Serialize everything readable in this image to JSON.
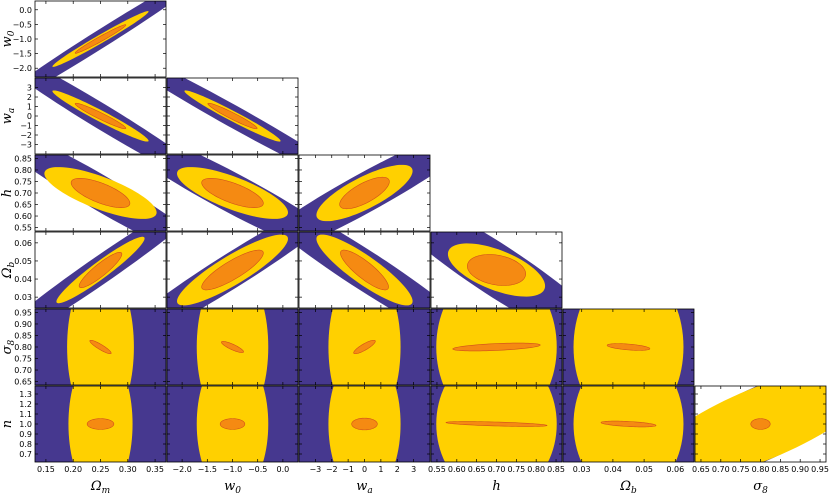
{
  "colors": {
    "outer": "#46388f",
    "middle": "#ffd000",
    "inner": "#f58a12",
    "inner_edge": "#d0501a"
  },
  "parameters": [
    {
      "id": "Om",
      "label_base": "Ω",
      "label_sub": "m",
      "fid": 0.25,
      "range": [
        0.13,
        0.37
      ],
      "ticks": [
        "0.15",
        "0.20",
        "0.25",
        "0.30",
        "0.35"
      ]
    },
    {
      "id": "w0",
      "label_base": "w",
      "label_sub": "0",
      "fid": -1.0,
      "range": [
        -2.3,
        0.3
      ],
      "ticks": [
        "−2.0",
        "−1.5",
        "−1.0",
        "−0.5",
        "0.0"
      ]
    },
    {
      "id": "wa",
      "label_base": "w",
      "label_sub": "a",
      "fid": 0.0,
      "range": [
        -4.0,
        4.0
      ],
      "ticks": [
        "−3",
        "−2",
        "−1",
        "0",
        "1",
        "2",
        "3"
      ]
    },
    {
      "id": "h",
      "label_base": "h",
      "label_sub": "",
      "fid": 0.7,
      "range": [
        0.535,
        0.865
      ],
      "ticks": [
        "0.55",
        "0.60",
        "0.65",
        "0.70",
        "0.75",
        "0.80",
        "0.85"
      ]
    },
    {
      "id": "Ob",
      "label_base": "Ω",
      "label_sub": "b",
      "fid": 0.045,
      "range": [
        0.024,
        0.066
      ],
      "ticks": [
        "0.03",
        "0.04",
        "0.05",
        "0.06"
      ]
    },
    {
      "id": "s8",
      "label_base": "σ",
      "label_sub": "8",
      "fid": 0.8,
      "range": [
        0.635,
        0.965
      ],
      "ticks": [
        "0.65",
        "0.70",
        "0.75",
        "0.80",
        "0.85",
        "0.90",
        "0.95"
      ]
    },
    {
      "id": "n",
      "label_base": "n",
      "label_sub": "",
      "fid": 1.0,
      "range": [
        0.62,
        1.38
      ],
      "ticks": [
        "0.7",
        "0.8",
        "0.9",
        "1.0",
        "1.1",
        "1.2",
        "1.3"
      ]
    }
  ],
  "chart_data": {
    "type": "scatter",
    "title": "",
    "xlabel": "",
    "ylabel": "",
    "kind": "corner plot of 2D confidence ellipses (three nested contours per panel)",
    "panels": [
      {
        "x": "Om",
        "y": "w0",
        "outer": {
          "sx": 0.088,
          "sy": 1.04,
          "rho": 0.99
        },
        "middle": {
          "sx": 0.036,
          "sy": 0.39,
          "rho": 0.985
        },
        "inner": {
          "sx": 0.019,
          "sy": 0.2,
          "rho": 0.98
        }
      },
      {
        "x": "Om",
        "y": "wa",
        "outer": {
          "sx": 0.088,
          "sy": 3.1,
          "rho": -0.98
        },
        "middle": {
          "sx": 0.036,
          "sy": 1.1,
          "rho": -0.97
        },
        "inner": {
          "sx": 0.019,
          "sy": 0.55,
          "rho": -0.96
        }
      },
      {
        "x": "w0",
        "y": "wa",
        "outer": {
          "sx": 1.04,
          "sy": 3.1,
          "rho": -0.985
        },
        "middle": {
          "sx": 0.39,
          "sy": 1.1,
          "rho": -0.975
        },
        "inner": {
          "sx": 0.2,
          "sy": 0.55,
          "rho": -0.96
        }
      },
      {
        "x": "Om",
        "y": "h",
        "outer": {
          "sx": 0.088,
          "sy": 0.125,
          "rho": -0.96
        },
        "middle": {
          "sx": 0.042,
          "sy": 0.046,
          "rho": -0.75
        },
        "inner": {
          "sx": 0.022,
          "sy": 0.026,
          "rho": -0.7
        }
      },
      {
        "x": "w0",
        "y": "h",
        "outer": {
          "sx": 1.04,
          "sy": 0.125,
          "rho": -0.95
        },
        "middle": {
          "sx": 0.45,
          "sy": 0.046,
          "rho": -0.75
        },
        "inner": {
          "sx": 0.25,
          "sy": 0.026,
          "rho": -0.7
        }
      },
      {
        "x": "wa",
        "y": "h",
        "outer": {
          "sx": 3.1,
          "sy": 0.125,
          "rho": 0.95
        },
        "middle": {
          "sx": 1.2,
          "sy": 0.05,
          "rho": 0.78
        },
        "inner": {
          "sx": 0.62,
          "sy": 0.028,
          "rho": 0.72
        }
      },
      {
        "x": "Om",
        "y": "Ob",
        "outer": {
          "sx": 0.088,
          "sy": 0.0185,
          "rho": 0.98
        },
        "middle": {
          "sx": 0.033,
          "sy": 0.0075,
          "rho": 0.95
        },
        "inner": {
          "sx": 0.016,
          "sy": 0.004,
          "rho": 0.9
        }
      },
      {
        "x": "w0",
        "y": "Ob",
        "outer": {
          "sx": 1.04,
          "sy": 0.0185,
          "rho": 0.97
        },
        "middle": {
          "sx": 0.45,
          "sy": 0.008,
          "rho": 0.88
        },
        "inner": {
          "sx": 0.25,
          "sy": 0.0045,
          "rho": 0.85
        }
      },
      {
        "x": "wa",
        "y": "Ob",
        "outer": {
          "sx": 3.1,
          "sy": 0.0185,
          "rho": -0.96
        },
        "middle": {
          "sx": 1.2,
          "sy": 0.008,
          "rho": -0.88
        },
        "inner": {
          "sx": 0.6,
          "sy": 0.0045,
          "rho": -0.85
        }
      },
      {
        "x": "h",
        "y": "Ob",
        "outer": {
          "sx": 0.125,
          "sy": 0.0185,
          "rho": -0.93
        },
        "middle": {
          "sx": 0.05,
          "sy": 0.006,
          "rho": -0.6
        },
        "inner": {
          "sx": 0.03,
          "sy": 0.0035,
          "rho": -0.25
        }
      },
      {
        "x": "Om",
        "y": "s8",
        "outer": {
          "sx": 0.088,
          "sy": 0.143,
          "rho": 0.0
        },
        "middle": {
          "sx": 0.025,
          "sy": 0.143,
          "rho": 0.0
        },
        "inner": {
          "sx": 0.008,
          "sy": 0.012,
          "rho": -0.9
        }
      },
      {
        "x": "w0",
        "y": "s8",
        "outer": {
          "sx": 0.98,
          "sy": 0.143,
          "rho": 0.0
        },
        "middle": {
          "sx": 0.29,
          "sy": 0.143,
          "rho": 0.0
        },
        "inner": {
          "sx": 0.09,
          "sy": 0.01,
          "rho": -0.85
        }
      },
      {
        "x": "wa",
        "y": "s8",
        "outer": {
          "sx": 3.0,
          "sy": 0.143,
          "rho": 0.0
        },
        "middle": {
          "sx": 0.9,
          "sy": 0.143,
          "rho": 0.0
        },
        "inner": {
          "sx": 0.27,
          "sy": 0.012,
          "rho": 0.85
        }
      },
      {
        "x": "h",
        "y": "s8",
        "outer": {
          "sx": 0.125,
          "sy": 0.143,
          "rho": 0.0
        },
        "middle": {
          "sx": 0.062,
          "sy": 0.143,
          "rho": 0.0
        },
        "inner": {
          "sx": 0.045,
          "sy": 0.007,
          "rho": 0.5
        }
      },
      {
        "x": "Ob",
        "y": "s8",
        "outer": {
          "sx": 0.0185,
          "sy": 0.143,
          "rho": 0.0
        },
        "middle": {
          "sx": 0.0072,
          "sy": 0.143,
          "rho": 0.0
        },
        "inner": {
          "sx": 0.0028,
          "sy": 0.006,
          "rho": -0.5
        }
      },
      {
        "x": "Om",
        "y": "n",
        "outer": {
          "sx": 0.088,
          "sy": 0.29,
          "rho": -0.3
        },
        "middle": {
          "sx": 0.024,
          "sy": 0.3,
          "rho": 0.0
        },
        "inner": {
          "sx": 0.01,
          "sy": 0.022,
          "rho": 0.0
        }
      },
      {
        "x": "w0",
        "y": "n",
        "outer": {
          "sx": 0.98,
          "sy": 0.29,
          "rho": -0.3
        },
        "middle": {
          "sx": 0.29,
          "sy": 0.3,
          "rho": 0.0
        },
        "inner": {
          "sx": 0.1,
          "sy": 0.022,
          "rho": 0.0
        }
      },
      {
        "x": "wa",
        "y": "n",
        "outer": {
          "sx": 3.0,
          "sy": 0.29,
          "rho": 0.3
        },
        "middle": {
          "sx": 0.9,
          "sy": 0.3,
          "rho": 0.0
        },
        "inner": {
          "sx": 0.32,
          "sy": 0.024,
          "rho": 0.0
        }
      },
      {
        "x": "h",
        "y": "n",
        "outer": {
          "sx": 0.125,
          "sy": 0.29,
          "rho": 0.35
        },
        "middle": {
          "sx": 0.062,
          "sy": 0.3,
          "rho": 0.0
        },
        "inner": {
          "sx": 0.052,
          "sy": 0.01,
          "rho": -0.6
        }
      },
      {
        "x": "Ob",
        "y": "n",
        "outer": {
          "sx": 0.0185,
          "sy": 0.29,
          "rho": -0.3
        },
        "middle": {
          "sx": 0.0072,
          "sy": 0.3,
          "rho": 0.0
        },
        "inner": {
          "sx": 0.0036,
          "sy": 0.012,
          "rho": -0.5
        }
      },
      {
        "x": "s8",
        "y": "n",
        "outer": {
          "sx": 0.125,
          "sy": 0.27,
          "rho": 0.8
        },
        "middle": {
          "sx": 0.12,
          "sy": 0.24,
          "rho": 0.75
        },
        "inner": {
          "sx": 0.01,
          "sy": 0.022,
          "rho": 0.0
        }
      }
    ]
  }
}
